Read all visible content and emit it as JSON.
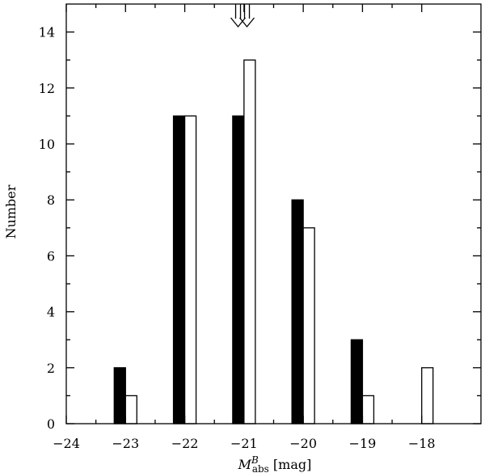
{
  "chart_data": {
    "type": "bar",
    "title": "",
    "xlabel": {
      "main": "M",
      "sup": "B",
      "sub": "abs",
      "unit": " [mag]"
    },
    "ylabel": "Number",
    "xlim": [
      -24,
      -17
    ],
    "ylim": [
      0,
      15
    ],
    "x_ticks": [
      -24,
      -23,
      -22,
      -21,
      -20,
      -19,
      -18
    ],
    "x_tick_labels": [
      "−24",
      "−23",
      "−22",
      "−21",
      "−20",
      "−19",
      "−18"
    ],
    "y_ticks": [
      0,
      2,
      4,
      6,
      8,
      10,
      12,
      14
    ],
    "y_tick_labels": [
      "0",
      "2",
      "4",
      "6",
      "8",
      "10",
      "12",
      "14"
    ],
    "categories": [
      -23,
      -22,
      -21,
      -20,
      -19,
      -18
    ],
    "series": [
      {
        "fill": "#000000",
        "values": [
          2,
          11,
          11,
          8,
          3,
          0
        ]
      },
      {
        "fill": "#ffffff",
        "values": [
          1,
          11,
          13,
          7,
          1,
          2
        ]
      }
    ],
    "arrows_at_x": [
      -21.1,
      -20.95
    ],
    "grid": false,
    "legend": "none"
  }
}
